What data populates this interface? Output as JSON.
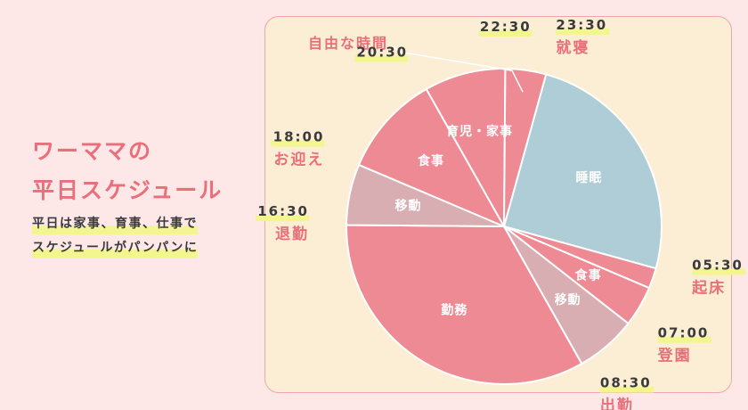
{
  "heading": {
    "line1": "ワーママの",
    "line2": "平日スケジュール"
  },
  "subtitle": {
    "line1": "平日は家事、育事、仕事で",
    "line2": "スケジュールがパンパンに"
  },
  "colors": {
    "pink": "#ee8a93",
    "dusty_pink": "#d9aeb3",
    "blue": "#aecdd6",
    "accent": "#e96f7b",
    "highlight": "#f3f58f",
    "card_bg": "#fbeed4",
    "page_bg": "#fde7e7"
  },
  "chart_data": {
    "type": "pie",
    "unit": "hours",
    "slices": [
      {
        "label": "睡眠",
        "start": "23:30",
        "end": "05:30",
        "hours": 6.0,
        "color": "#aecdd6",
        "show_label": true
      },
      {
        "label": "",
        "start": "05:30",
        "end": "06:00",
        "hours": 0.5,
        "color": "#ee8a93",
        "show_label": false
      },
      {
        "label": "食事",
        "start": "06:00",
        "end": "07:00",
        "hours": 1.0,
        "color": "#ee8a93",
        "show_label": true
      },
      {
        "label": "移動",
        "start": "07:00",
        "end": "08:30",
        "hours": 1.5,
        "color": "#d9aeb3",
        "show_label": true
      },
      {
        "label": "勤務",
        "start": "08:30",
        "end": "16:30",
        "hours": 8.0,
        "color": "#ee8a93",
        "show_label": true
      },
      {
        "label": "移動",
        "start": "16:30",
        "end": "18:00",
        "hours": 1.5,
        "color": "#d9aeb3",
        "show_label": true
      },
      {
        "label": "食事",
        "start": "18:00",
        "end": "20:30",
        "hours": 2.5,
        "color": "#ee8a93",
        "show_label": true
      },
      {
        "label": "育児・家事",
        "start": "20:30",
        "end": "22:30",
        "hours": 2.0,
        "color": "#ee8a93",
        "show_label": true
      },
      {
        "label": "自由な時間",
        "start": "22:30",
        "end": "23:30",
        "hours": 1.0,
        "color": "#ee8a93",
        "show_label": false,
        "callout": true
      }
    ],
    "time_markers": [
      {
        "time": "23:30",
        "event": "就寝"
      },
      {
        "time": "05:30",
        "event": "起床"
      },
      {
        "time": "07:00",
        "event": "登園"
      },
      {
        "time": "08:30",
        "event": "出勤"
      },
      {
        "time": "16:30",
        "event": "退勤"
      },
      {
        "time": "18:00",
        "event": "お迎え"
      },
      {
        "time": "20:30",
        "event": ""
      },
      {
        "time": "22:30",
        "event": ""
      }
    ]
  }
}
